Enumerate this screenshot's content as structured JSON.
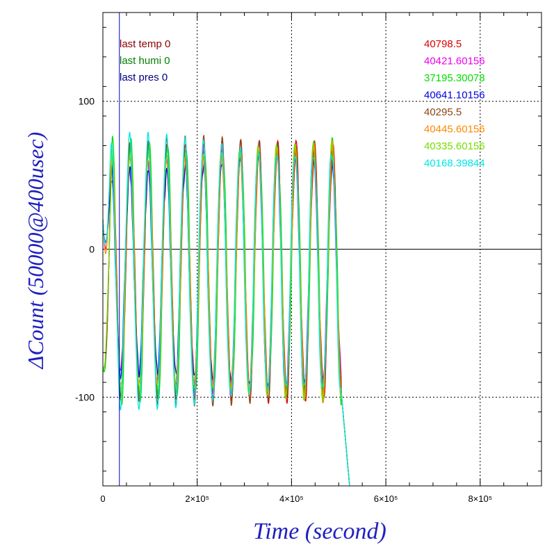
{
  "chart_data": {
    "type": "line",
    "title": "",
    "xlabel": "Time (second)",
    "ylabel": "ΔCount (50000@400usec)",
    "xlim": [
      0,
      930000
    ],
    "ylim": [
      -160,
      160
    ],
    "grid": true,
    "x_ticks": [
      {
        "value": 0,
        "label": "0"
      },
      {
        "value": 200000,
        "label": "2×10⁵"
      },
      {
        "value": 400000,
        "label": "4×10⁵"
      },
      {
        "value": 600000,
        "label": "6×10⁵"
      },
      {
        "value": 800000,
        "label": "8×10⁵"
      }
    ],
    "y_ticks": [
      {
        "value": -100,
        "label": "-100"
      },
      {
        "value": 0,
        "label": "0"
      },
      {
        "value": 100,
        "label": "100"
      }
    ],
    "annotations_left": [
      {
        "text": "last temp 0",
        "color": "#8b0000"
      },
      {
        "text": "last humi 0",
        "color": "#008000"
      },
      {
        "text": "last pres 0",
        "color": "#000080"
      }
    ],
    "series": [
      {
        "name": "40798.5",
        "color": "#dd0000",
        "amp": 88,
        "phase": 0.3,
        "mod": 0.18
      },
      {
        "name": "40421.60156",
        "color": "#ee00ee",
        "amp": 80,
        "phase": 0.55,
        "mod": 0.35
      },
      {
        "name": "37195.30078",
        "color": "#00dd00",
        "amp": 90,
        "phase": 0.1,
        "mod": 0.12
      },
      {
        "name": "40641.10156",
        "color": "#0000dd",
        "amp": 85,
        "phase": 0.75,
        "mod": 0.45
      },
      {
        "name": "40295.5",
        "color": "#8b4513",
        "amp": 86,
        "phase": 0.2,
        "mod": 0.15
      },
      {
        "name": "40445.60156",
        "color": "#ff8800",
        "amp": 84,
        "phase": 0.4,
        "mod": 0.2
      },
      {
        "name": "40335.60156",
        "color": "#77dd00",
        "amp": 87,
        "phase": 0.6,
        "mod": 0.16
      },
      {
        "name": "40168.39844",
        "color": "#00e5e5",
        "amp": 89,
        "phase": 0.85,
        "mod": 0.14
      }
    ],
    "signal": {
      "period": 39000,
      "offset": -15,
      "end_x": 505000,
      "drop_end_x": 530000
    },
    "marker_line_x": 35000
  }
}
